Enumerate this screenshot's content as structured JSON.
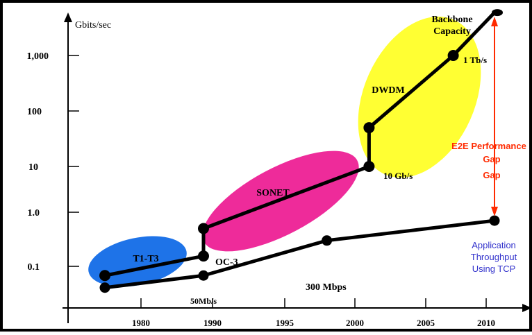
{
  "chart_data": {
    "type": "line",
    "title": "",
    "y_unit_label": "Gbits/sec",
    "y_scale": "log",
    "x_ticks": [
      "1980",
      "1990",
      "1995",
      "2000",
      "2005",
      "2010"
    ],
    "y_ticks": [
      "0.1",
      "1.0",
      "10",
      "100",
      "1,000"
    ],
    "series": [
      {
        "name": "Backbone Capacity",
        "color": "#000000",
        "points": [
          {
            "x": "1977",
            "y": 0.05
          },
          {
            "x": "1989",
            "y": 0.155,
            "label": "OC-3"
          },
          {
            "x": "1989",
            "y": 0.5
          },
          {
            "x": "2001",
            "y": 10,
            "label": "10 Gb/s"
          },
          {
            "x": "2001",
            "y": 50
          },
          {
            "x": "2007",
            "y": 1000,
            "label": "1 Tb/s"
          },
          {
            "x": "2010",
            "y": 5000
          }
        ]
      },
      {
        "name": "Application Throughput Using TCP",
        "color": "#000000",
        "points": [
          {
            "x": "1977",
            "y": 0.02
          },
          {
            "x": "1989",
            "y": 0.05,
            "label": "50Mb/s"
          },
          {
            "x": "1998",
            "y": 0.3,
            "label": "300 Mbps"
          },
          {
            "x": "2010",
            "y": 0.7
          }
        ]
      }
    ],
    "regions": [
      {
        "label": "T1-T3",
        "color": "#1e73e8"
      },
      {
        "label": "SONET",
        "color": "#ee2b9a"
      },
      {
        "label": "DWDM",
        "color": "#ffff33"
      }
    ],
    "annotations": {
      "backbone_label": [
        "Backbone",
        "Capacity"
      ],
      "gap_label": [
        "E2E Performance",
        "Gap",
        "Gap"
      ],
      "gap_color": "#ff2a00",
      "app_label": [
        "Application",
        "Throughput",
        "Using TCP"
      ],
      "app_color": "#3333cc"
    }
  }
}
